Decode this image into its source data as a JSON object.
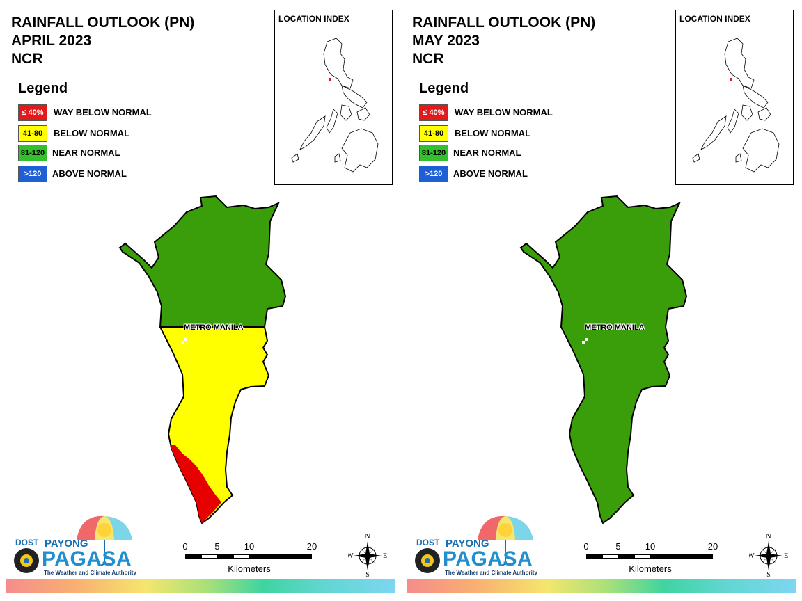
{
  "panels": [
    {
      "title_line1": "RAINFALL OUTLOOK (PN)",
      "title_line2": "APRIL 2023",
      "title_line3": "NCR",
      "legend_title": "Legend",
      "legend": [
        {
          "code": "≤ 40%",
          "label": "WAY BELOW NORMAL",
          "color": "#e31a1c"
        },
        {
          "code": "41-80",
          "label": "BELOW NORMAL",
          "color": "#ffff00"
        },
        {
          "code": "81-120",
          "label": "NEAR NORMAL",
          "color": "#33a02c"
        },
        {
          "code": ">120",
          "label": "ABOVE NORMAL",
          "color": "#1f5fd6"
        }
      ],
      "location_index_title": "LOCATION INDEX",
      "map_label": "METRO MANILA",
      "map_zones": [
        "near normal (north)",
        "below normal (south)",
        "way below normal (southwest strip)"
      ],
      "scale_ticks": [
        "0",
        "5",
        "10",
        "20"
      ],
      "scale_unit": "Kilometers",
      "compass": {
        "n": "N",
        "s": "S",
        "e": "E",
        "w": "W"
      },
      "logo": {
        "dost": "DOST",
        "payong": "PAYONG",
        "pagasa": "PAGASA",
        "tagline": "The Weather and Climate Authority"
      }
    },
    {
      "title_line1": "RAINFALL OUTLOOK (PN)",
      "title_line2": "MAY 2023",
      "title_line3": "NCR",
      "legend_title": "Legend",
      "legend": [
        {
          "code": "≤ 40%",
          "label": "WAY BELOW NORMAL",
          "color": "#e31a1c"
        },
        {
          "code": "41-80",
          "label": "BELOW NORMAL",
          "color": "#ffff00"
        },
        {
          "code": "81-120",
          "label": "NEAR NORMAL",
          "color": "#33a02c"
        },
        {
          "code": ">120",
          "label": "ABOVE NORMAL",
          "color": "#1f5fd6"
        }
      ],
      "location_index_title": "LOCATION INDEX",
      "map_label": "METRO MANILA",
      "map_zones": [
        "near normal (entire region)"
      ],
      "scale_ticks": [
        "0",
        "5",
        "10",
        "20"
      ],
      "scale_unit": "Kilometers",
      "compass": {
        "n": "N",
        "s": "S",
        "e": "E",
        "w": "W"
      },
      "logo": {
        "dost": "DOST",
        "payong": "PAYONG",
        "pagasa": "PAGASA",
        "tagline": "The Weather and Climate Authority"
      }
    }
  ],
  "colors": {
    "near_normal": "#3a9e0a",
    "below_normal": "#ffff00",
    "way_below_normal": "#e60000",
    "above_normal": "#1f5fd6"
  }
}
